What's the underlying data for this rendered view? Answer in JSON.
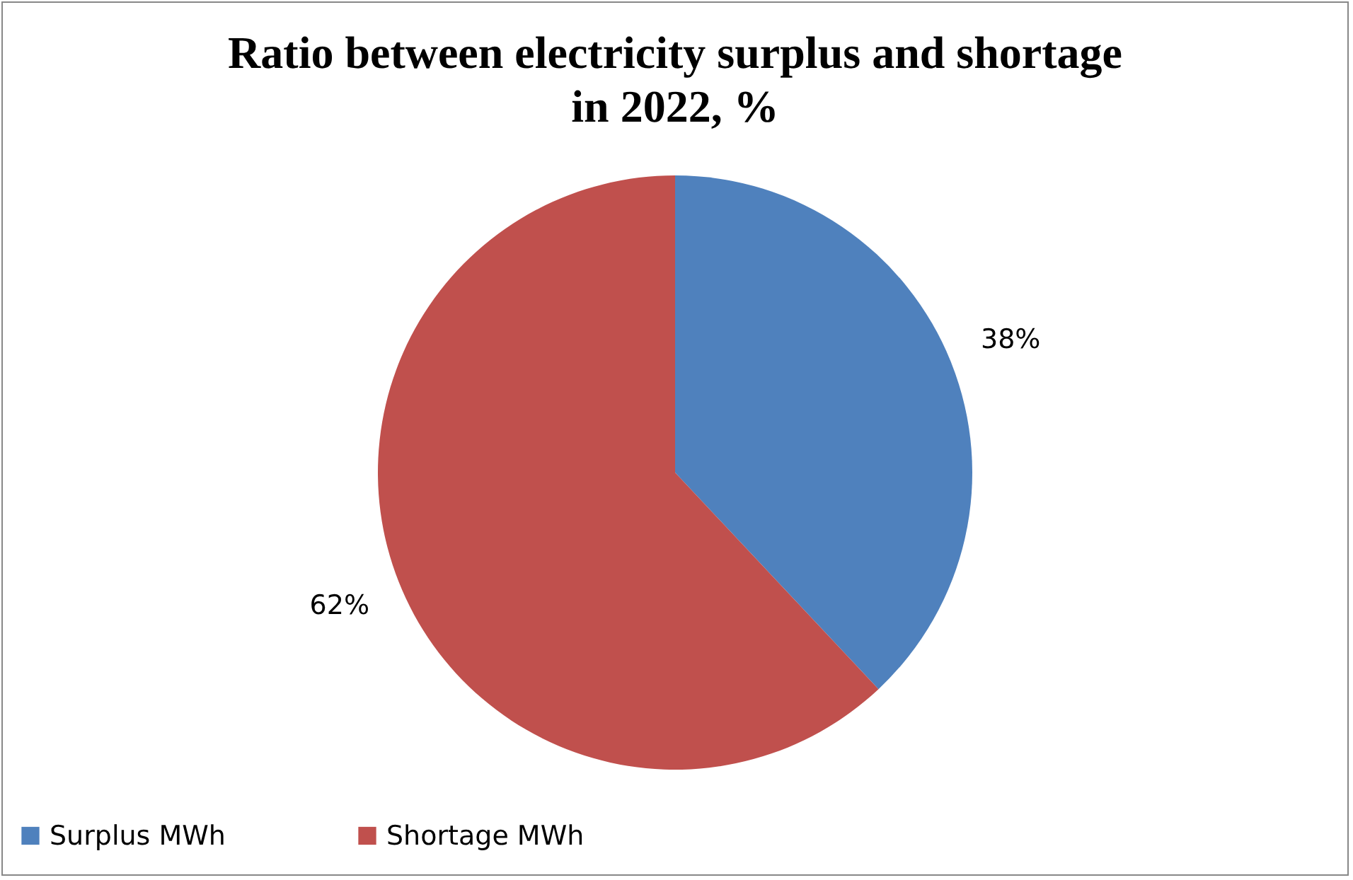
{
  "chart_data": {
    "type": "pie",
    "title": "Ratio between electricity surplus and shortage in 2022, %",
    "categories": [
      "Surplus MWh",
      "Shortage MWh"
    ],
    "values": [
      38,
      62
    ],
    "colors": [
      "#4f81bd",
      "#c0504d"
    ],
    "value_labels": [
      "38%",
      "62%"
    ],
    "legend": "bottom"
  }
}
